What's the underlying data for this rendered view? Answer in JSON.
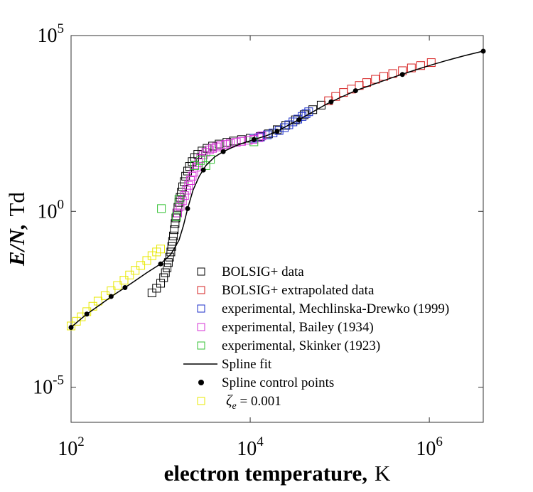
{
  "chart_data": {
    "type": "scatter",
    "title": "",
    "xlabel": "electron temperature,",
    "xlabel_unit": "K",
    "ylabel_main": "E/N,",
    "ylabel_unit": "Td",
    "xscale": "log",
    "yscale": "log",
    "xlim": [
      100,
      4000000
    ],
    "ylim": [
      1e-06,
      100000
    ],
    "x_ticks": [
      {
        "value": 100,
        "base": "10",
        "exp": "2"
      },
      {
        "value": 10000,
        "base": "10",
        "exp": "4"
      },
      {
        "value": 1000000,
        "base": "10",
        "exp": "6"
      }
    ],
    "y_ticks": [
      {
        "value": 1e-05,
        "base": "10",
        "exp": "-5"
      },
      {
        "value": 1,
        "base": "10",
        "exp": "0"
      },
      {
        "value": 100000,
        "base": "10",
        "exp": "5"
      }
    ],
    "grid": false,
    "legend_position": "bottom-center",
    "series": [
      {
        "name": "BOLSIG+ data",
        "color": "#000000",
        "marker": "square",
        "points": [
          [
            800,
            0.0048
          ],
          [
            900,
            0.0065
          ],
          [
            1000,
            0.009
          ],
          [
            1080,
            0.013
          ],
          [
            1130,
            0.018
          ],
          [
            1180,
            0.025
          ],
          [
            1220,
            0.035
          ],
          [
            1260,
            0.05
          ],
          [
            1300,
            0.07
          ],
          [
            1330,
            0.1
          ],
          [
            1360,
            0.14
          ],
          [
            1390,
            0.2
          ],
          [
            1420,
            0.3
          ],
          [
            1450,
            0.45
          ],
          [
            1480,
            0.65
          ],
          [
            1520,
            0.9
          ],
          [
            1560,
            1.3
          ],
          [
            1600,
            1.8
          ],
          [
            1650,
            2.5
          ],
          [
            1700,
            3.5
          ],
          [
            1760,
            5
          ],
          [
            1830,
            7
          ],
          [
            1900,
            10
          ],
          [
            2000,
            14
          ],
          [
            2100,
            19
          ],
          [
            2250,
            26
          ],
          [
            2400,
            34
          ],
          [
            2600,
            42
          ],
          [
            2900,
            52
          ],
          [
            3300,
            62
          ],
          [
            3800,
            72
          ],
          [
            4500,
            82
          ],
          [
            5500,
            92
          ],
          [
            6500,
            100
          ],
          [
            8000,
            110
          ],
          [
            10000,
            120
          ],
          [
            13000,
            135
          ],
          [
            16000,
            160
          ],
          [
            20000,
            210
          ],
          [
            25000,
            280
          ],
          [
            32000,
            400
          ],
          [
            40000,
            560
          ],
          [
            50000,
            780
          ],
          [
            62000,
            1050
          ]
        ]
      },
      {
        "name": "BOLSIG+ extrapolated data",
        "color": "#d62020",
        "marker": "square",
        "points": [
          [
            75000,
            1400
          ],
          [
            90000,
            1850
          ],
          [
            110000,
            2400
          ],
          [
            135000,
            3000
          ],
          [
            165000,
            3800
          ],
          [
            200000,
            4600
          ],
          [
            250000,
            5700
          ],
          [
            310000,
            6900
          ],
          [
            390000,
            8300
          ],
          [
            500000,
            10000
          ],
          [
            630000,
            12000
          ],
          [
            800000,
            14000
          ],
          [
            1050000,
            17000
          ]
        ]
      },
      {
        "name": "experimental, Mechlinska-Drewko (1999)",
        "color": "#1b2ec8",
        "marker": "square",
        "points": [
          [
            11000,
            120
          ],
          [
            13000,
            130
          ],
          [
            15500,
            150
          ],
          [
            18000,
            170
          ],
          [
            21000,
            200
          ],
          [
            24000,
            240
          ],
          [
            27000,
            290
          ],
          [
            30000,
            350
          ],
          [
            34000,
            420
          ],
          [
            38000,
            500
          ],
          [
            42000,
            600
          ],
          [
            45000,
            680
          ]
        ]
      },
      {
        "name": "experimental, Bailey (1934)",
        "color": "#d631d6",
        "marker": "square",
        "points": [
          [
            1550,
            0.9
          ],
          [
            1650,
            1.4
          ],
          [
            1750,
            2
          ],
          [
            1850,
            2.8
          ],
          [
            1950,
            4
          ],
          [
            2050,
            5.5
          ],
          [
            2150,
            7.5
          ],
          [
            2250,
            10
          ],
          [
            2350,
            13
          ],
          [
            2500,
            18
          ],
          [
            2650,
            24
          ],
          [
            2800,
            32
          ],
          [
            3000,
            40
          ],
          [
            3200,
            48
          ],
          [
            3500,
            56
          ],
          [
            3800,
            62
          ],
          [
            4200,
            68
          ],
          [
            4700,
            74
          ],
          [
            5300,
            80
          ],
          [
            6000,
            86
          ],
          [
            7000,
            92
          ],
          [
            8000,
            98
          ],
          [
            9500,
            105
          ],
          [
            11000,
            112
          ],
          [
            12500,
            125
          ],
          [
            13500,
            140
          ]
        ]
      },
      {
        "name": "experimental, Skinker (1923)",
        "color": "#33c233",
        "marker": "square",
        "points": [
          [
            1020,
            1.2
          ],
          [
            1500,
            0.7
          ],
          [
            1600,
            2.2
          ],
          [
            2400,
            20
          ],
          [
            2800,
            28
          ],
          [
            3200,
            20
          ],
          [
            3600,
            30
          ],
          [
            11000,
            95
          ]
        ]
      },
      {
        "name": "ζe = 0.001",
        "color": "#e8e800",
        "marker": "square",
        "points": [
          [
            100,
            0.00055
          ],
          [
            115,
            0.00075
          ],
          [
            130,
            0.001
          ],
          [
            150,
            0.0014
          ],
          [
            175,
            0.002
          ],
          [
            200,
            0.0028
          ],
          [
            240,
            0.004
          ],
          [
            280,
            0.0055
          ],
          [
            330,
            0.0078
          ],
          [
            390,
            0.011
          ],
          [
            450,
            0.0155
          ],
          [
            520,
            0.021
          ],
          [
            600,
            0.029
          ],
          [
            700,
            0.04
          ],
          [
            800,
            0.055
          ],
          [
            900,
            0.07
          ],
          [
            1000,
            0.085
          ]
        ]
      },
      {
        "name": "Spline fit",
        "color": "#000000",
        "marker": "line",
        "points": [
          [
            100,
            0.0005
          ],
          [
            120,
            0.00075
          ],
          [
            150,
            0.0012
          ],
          [
            200,
            0.002
          ],
          [
            300,
            0.0042
          ],
          [
            400,
            0.0068
          ],
          [
            500,
            0.01
          ],
          [
            700,
            0.018
          ],
          [
            1000,
            0.032
          ],
          [
            1300,
            0.06
          ],
          [
            1600,
            0.15
          ],
          [
            1800,
            0.4
          ],
          [
            2000,
            1.2
          ],
          [
            2300,
            4
          ],
          [
            2700,
            10
          ],
          [
            3200,
            20
          ],
          [
            4000,
            35
          ],
          [
            5000,
            50
          ],
          [
            6500,
            68
          ],
          [
            8000,
            85
          ],
          [
            11000,
            110
          ],
          [
            15000,
            140
          ],
          [
            20000,
            190
          ],
          [
            30000,
            330
          ],
          [
            45000,
            580
          ],
          [
            70000,
            1100
          ],
          [
            100000,
            1700
          ],
          [
            150000,
            2700
          ],
          [
            250000,
            4300
          ],
          [
            400000,
            6600
          ],
          [
            700000,
            10500
          ],
          [
            1000000,
            14000
          ],
          [
            1500000,
            19000
          ],
          [
            2500000,
            27000
          ],
          [
            4000000,
            36000
          ]
        ]
      },
      {
        "name": "Spline control points",
        "color": "#000000",
        "marker": "dot",
        "points": [
          [
            100,
            0.0005
          ],
          [
            150,
            0.0012
          ],
          [
            280,
            0.0038
          ],
          [
            400,
            0.0068
          ],
          [
            1000,
            0.032
          ],
          [
            2000,
            1.2
          ],
          [
            3000,
            15
          ],
          [
            5000,
            50
          ],
          [
            11000,
            110
          ],
          [
            20000,
            190
          ],
          [
            35000,
            400
          ],
          [
            80000,
            1300
          ],
          [
            150000,
            2700
          ],
          [
            500000,
            7800
          ],
          [
            4000000,
            36000
          ]
        ]
      }
    ]
  }
}
